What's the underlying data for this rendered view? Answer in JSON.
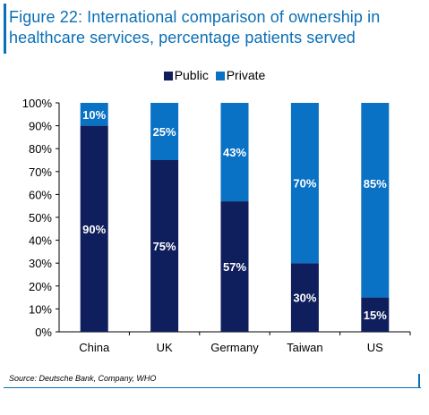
{
  "header": {
    "title_line1": "Figure 22: International comparison of ownership in",
    "title_line2": "healthcare services, percentage patients served"
  },
  "footer": {
    "source": "Source: Deutsche Bank, Company, WHO"
  },
  "colors": {
    "public": "#0f1e5c",
    "private": "#0a72c4",
    "accent": "#0a6fb6"
  },
  "chart_data": {
    "type": "bar",
    "stacked": true,
    "title": "Figure 22: International comparison of ownership in healthcare services, percentage patients served",
    "categories": [
      "China",
      "UK",
      "Germany",
      "Taiwan",
      "US"
    ],
    "series": [
      {
        "name": "Public",
        "values": [
          90,
          75,
          57,
          30,
          15
        ],
        "labels": [
          "90%",
          "75%",
          "57%",
          "30%",
          "15%"
        ]
      },
      {
        "name": "Private",
        "values": [
          10,
          25,
          43,
          70,
          85
        ],
        "labels": [
          "10%",
          "25%",
          "43%",
          "70%",
          "85%"
        ]
      }
    ],
    "ylim": [
      0,
      100
    ],
    "yticks": [
      "0%",
      "10%",
      "20%",
      "30%",
      "40%",
      "50%",
      "60%",
      "70%",
      "80%",
      "90%",
      "100%"
    ],
    "grid": false,
    "legend_position": "top-center",
    "xlabel": "",
    "ylabel": ""
  }
}
